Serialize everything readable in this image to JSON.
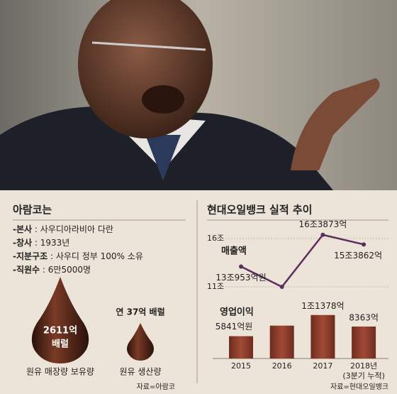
{
  "aramco": {
    "title": "아람코는",
    "facts": [
      {
        "label": "-본사",
        "text": " : 사우디아라비아 다란"
      },
      {
        "label": "-창사",
        "text": " : 1933년"
      },
      {
        "label": "-지분구조",
        "text": " : 사우디 정부 100% 소유"
      },
      {
        "label": "-직원수",
        "text": " : 6만5000명"
      }
    ],
    "reserves": {
      "label": "2611억",
      "unit": "배럴",
      "caption": "원유 매장량 보유량"
    },
    "production": {
      "label": "연 37억 배럴",
      "caption": "원유 생산량"
    },
    "source": "자료=아람코"
  },
  "chart_data": [
    {
      "type": "line",
      "title": "현대오일뱅크 실적 추이",
      "series": [
        {
          "name": "매출액",
          "color": "#5a2d5c",
          "values": [
            13.0953,
            11,
            16.3873,
            15.3862
          ],
          "value_labels": [
            "13조953억원",
            null,
            "16조3873억",
            "15조3862억"
          ]
        }
      ],
      "ylim": [
        11,
        16
      ],
      "yticks": [
        {
          "value": 16,
          "label": "16조"
        },
        {
          "value": 11,
          "label": "11조"
        }
      ],
      "grid": true
    },
    {
      "type": "bar",
      "categories": [
        "2015",
        "2016",
        "2017",
        "2018년"
      ],
      "annotation": "(3분기 누적)",
      "series": [
        {
          "name": "영업이익",
          "color": "#8a3b2b",
          "values": [
            5841,
            8600,
            11378,
            8363
          ],
          "value_labels": [
            "5841억원",
            null,
            "1조1378억",
            "8363억"
          ]
        }
      ],
      "ylim": [
        0,
        13000
      ]
    }
  ],
  "chart_source": "자료=현대오일뱅크"
}
